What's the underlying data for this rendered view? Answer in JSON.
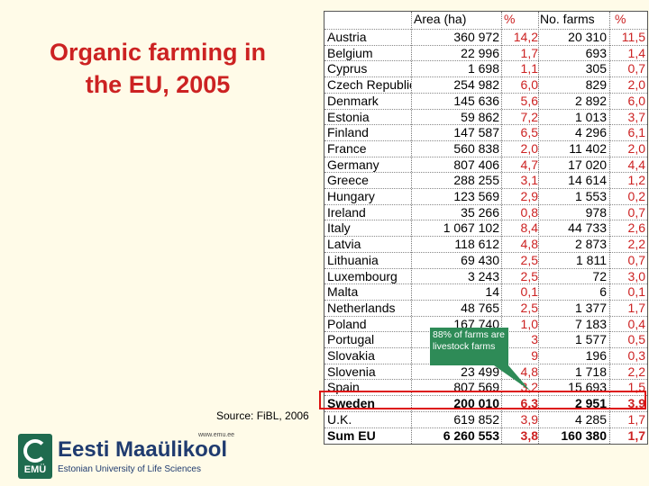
{
  "title": {
    "line1": "Organic farming in",
    "line2": "the EU, 2005"
  },
  "source": "Source: FiBL, 2006",
  "logo": {
    "url": "www.emu.ee",
    "emblem_text": "EMÜ",
    "name": "Eesti Maaülikool",
    "subtitle": "Estonian University of Life Sciences"
  },
  "table": {
    "headers": {
      "area": "Area (ha)",
      "area_pct": "%",
      "farms": "No. farms",
      "farms_pct": "%"
    },
    "rows": [
      {
        "country": "Austria",
        "area": "360 972",
        "area_pct": "14,2",
        "farms": "20 310",
        "farms_pct": "11,5"
      },
      {
        "country": "Belgium",
        "area": "22 996",
        "area_pct": "1,7",
        "farms": "693",
        "farms_pct": "1,4"
      },
      {
        "country": "Cyprus",
        "area": "1 698",
        "area_pct": "1,1",
        "farms": "305",
        "farms_pct": "0,7"
      },
      {
        "country": "Czech Republic",
        "area": "254 982",
        "area_pct": "6,0",
        "farms": "829",
        "farms_pct": "2,0"
      },
      {
        "country": "Denmark",
        "area": "145 636",
        "area_pct": "5,6",
        "farms": "2 892",
        "farms_pct": "6,0"
      },
      {
        "country": "Estonia",
        "area": "59 862",
        "area_pct": "7,2",
        "farms": "1 013",
        "farms_pct": "3,7"
      },
      {
        "country": "Finland",
        "area": "147 587",
        "area_pct": "6,5",
        "farms": "4 296",
        "farms_pct": "6,1"
      },
      {
        "country": "France",
        "area": "560 838",
        "area_pct": "2,0",
        "farms": "11 402",
        "farms_pct": "2,0"
      },
      {
        "country": "Germany",
        "area": "807 406",
        "area_pct": "4,7",
        "farms": "17 020",
        "farms_pct": "4,4"
      },
      {
        "country": "Greece",
        "area": "288 255",
        "area_pct": "3,1",
        "farms": "14 614",
        "farms_pct": "1,2"
      },
      {
        "country": "Hungary",
        "area": "123 569",
        "area_pct": "2,9",
        "farms": "1 553",
        "farms_pct": "0,2"
      },
      {
        "country": "Ireland",
        "area": "35 266",
        "area_pct": "0,8",
        "farms": "978",
        "farms_pct": "0,7"
      },
      {
        "country": "Italy",
        "area": "1 067 102",
        "area_pct": "8,4",
        "farms": "44 733",
        "farms_pct": "2,6"
      },
      {
        "country": "Latvia",
        "area": "118 612",
        "area_pct": "4,8",
        "farms": "2 873",
        "farms_pct": "2,2"
      },
      {
        "country": "Lithuania",
        "area": "69 430",
        "area_pct": "2,5",
        "farms": "1 811",
        "farms_pct": "0,7"
      },
      {
        "country": "Luxembourg",
        "area": "3 243",
        "area_pct": "2,5",
        "farms": "72",
        "farms_pct": "3,0"
      },
      {
        "country": "Malta",
        "area": "14",
        "area_pct": "0,1",
        "farms": "6",
        "farms_pct": "0,1"
      },
      {
        "country": "Netherlands",
        "area": "48 765",
        "area_pct": "2,5",
        "farms": "1 377",
        "farms_pct": "1,7"
      },
      {
        "country": "Poland",
        "area": "167 740",
        "area_pct": "1,0",
        "farms": "7 183",
        "farms_pct": "0,4"
      },
      {
        "country": "Portugal",
        "area": "",
        "area_pct": "3",
        "farms": "1 577",
        "farms_pct": "0,5"
      },
      {
        "country": "Slovakia",
        "area": "",
        "area_pct": "9",
        "farms": "196",
        "farms_pct": "0,3"
      },
      {
        "country": "Slovenia",
        "area": "23 499",
        "area_pct": "4,8",
        "farms": "1 718",
        "farms_pct": "2,2"
      },
      {
        "country": "Spain",
        "area": "807 569",
        "area_pct": "3,2",
        "farms": "15 693",
        "farms_pct": "1,5"
      },
      {
        "country": "Sweden",
        "area": "200 010",
        "area_pct": "6,3",
        "farms": "2 951",
        "farms_pct": "3,9"
      },
      {
        "country": "U.K.",
        "area": "619 852",
        "area_pct": "3,9",
        "farms": "4 285",
        "farms_pct": "1,7"
      },
      {
        "country": "Sum EU",
        "area": "6 260 553",
        "area_pct": "3,8",
        "farms": "160 380",
        "farms_pct": "1,7"
      }
    ]
  },
  "callout": "88% of farms are livestock farms",
  "colors": {
    "background": "#fffbe8",
    "title": "#cc2222",
    "percent": "#cc2222",
    "highlight": "#dd1111",
    "callout": "#2e8b57"
  }
}
